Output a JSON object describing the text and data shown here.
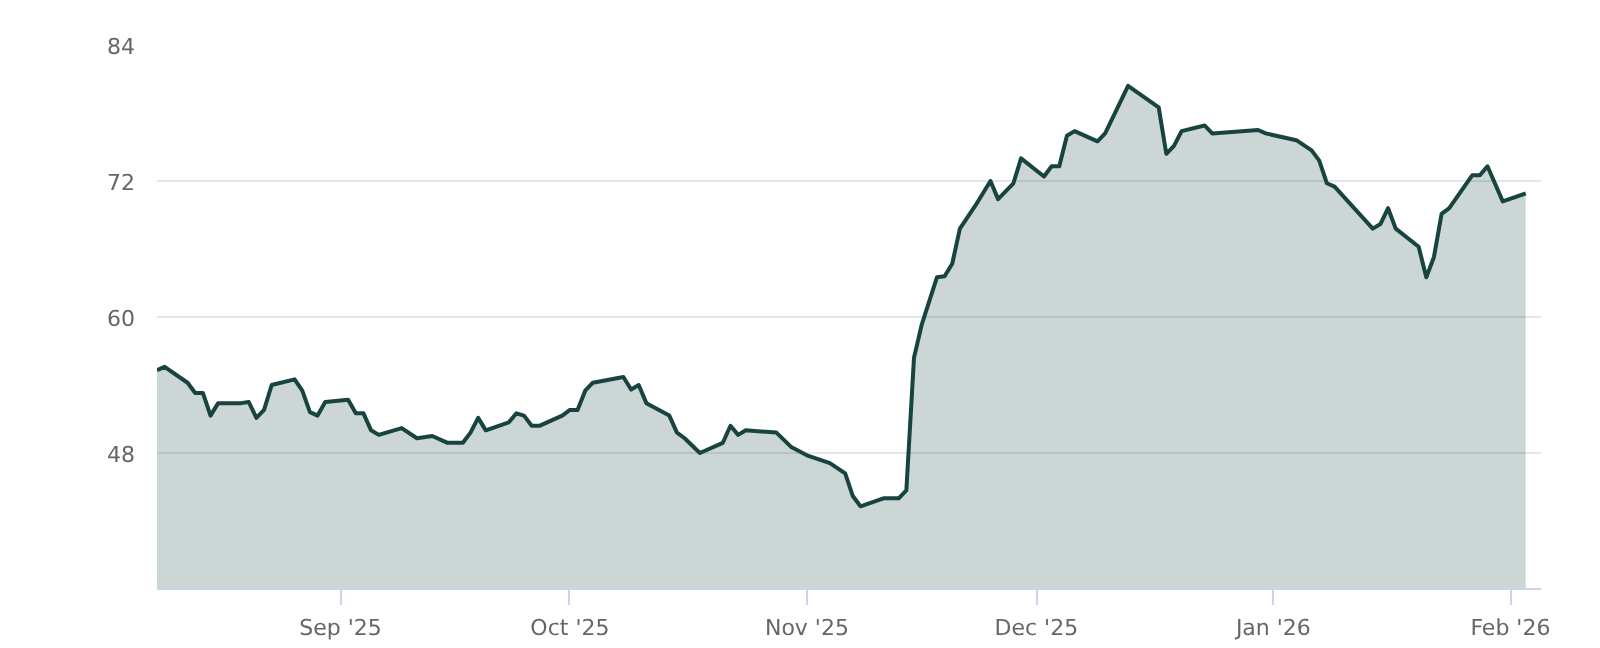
{
  "chart_data": {
    "type": "area",
    "grid": "y",
    "marker": "none",
    "line_style": "solid",
    "xlim": [
      "2025-08-08",
      "2026-02-05"
    ],
    "ylim": [
      36,
      84
    ],
    "xticks": [
      {
        "value": "2025-09-01",
        "label": "Sep '25"
      },
      {
        "value": "2025-10-01",
        "label": "Oct '25"
      },
      {
        "value": "2025-11-01",
        "label": "Nov '25"
      },
      {
        "value": "2025-12-01",
        "label": "Dec '25"
      },
      {
        "value": "2026-01-01",
        "label": "Jan '26"
      },
      {
        "value": "2026-02-01",
        "label": "Feb '26"
      }
    ],
    "yticks": [
      48,
      60,
      72,
      84
    ],
    "x": [
      "2025-08-08",
      "2025-08-09",
      "2025-08-12",
      "2025-08-13",
      "2025-08-14",
      "2025-08-15",
      "2025-08-16",
      "2025-08-19",
      "2025-08-20",
      "2025-08-21",
      "2025-08-22",
      "2025-08-23",
      "2025-08-26",
      "2025-08-27",
      "2025-08-28",
      "2025-08-29",
      "2025-08-30",
      "2025-09-02",
      "2025-09-03",
      "2025-09-04",
      "2025-09-05",
      "2025-09-06",
      "2025-09-09",
      "2025-09-11",
      "2025-09-13",
      "2025-09-15",
      "2025-09-17",
      "2025-09-18",
      "2025-09-19",
      "2025-09-20",
      "2025-09-23",
      "2025-09-24",
      "2025-09-25",
      "2025-09-26",
      "2025-09-27",
      "2025-09-30",
      "2025-10-01",
      "2025-10-02",
      "2025-10-03",
      "2025-10-04",
      "2025-10-08",
      "2025-10-09",
      "2025-10-10",
      "2025-10-11",
      "2025-10-14",
      "2025-10-15",
      "2025-10-16",
      "2025-10-18",
      "2025-10-21",
      "2025-10-22",
      "2025-10-23",
      "2025-10-24",
      "2025-10-28",
      "2025-10-30",
      "2025-11-01",
      "2025-11-04",
      "2025-11-06",
      "2025-11-07",
      "2025-11-08",
      "2025-11-11",
      "2025-11-13",
      "2025-11-14",
      "2025-11-15",
      "2025-11-16",
      "2025-11-18",
      "2025-11-19",
      "2025-11-20",
      "2025-11-21",
      "2025-11-23",
      "2025-11-25",
      "2025-11-26",
      "2025-11-28",
      "2025-11-29",
      "2025-12-02",
      "2025-12-03",
      "2025-12-04",
      "2025-12-05",
      "2025-12-06",
      "2025-12-09",
      "2025-12-10",
      "2025-12-13",
      "2025-12-17",
      "2025-12-18",
      "2025-12-19",
      "2025-12-20",
      "2025-12-23",
      "2025-12-24",
      "2025-12-30",
      "2025-12-31",
      "2026-01-04",
      "2026-01-06",
      "2026-01-07",
      "2026-01-08",
      "2026-01-09",
      "2026-01-14",
      "2026-01-15",
      "2026-01-16",
      "2026-01-17",
      "2026-01-20",
      "2026-01-21",
      "2026-01-22",
      "2026-01-23",
      "2026-01-24",
      "2026-01-27",
      "2026-01-28",
      "2026-01-29",
      "2026-01-31",
      "2026-02-03"
    ],
    "series": [
      {
        "color": "#17443f",
        "values": [
          55.3,
          55.6,
          54.2,
          53.3,
          53.3,
          51.3,
          52.4,
          52.4,
          52.5,
          51.1,
          51.8,
          54.0,
          54.5,
          53.5,
          51.6,
          51.3,
          52.5,
          52.7,
          51.5,
          51.5,
          50.0,
          49.6,
          50.2,
          49.3,
          49.5,
          48.9,
          48.9,
          49.8,
          51.1,
          50.0,
          50.7,
          51.5,
          51.3,
          50.4,
          50.4,
          51.3,
          51.8,
          51.8,
          53.5,
          54.2,
          54.7,
          53.6,
          54.0,
          52.4,
          51.3,
          49.8,
          49.3,
          48.0,
          48.9,
          50.4,
          49.6,
          50.0,
          49.8,
          48.5,
          47.8,
          47.1,
          46.2,
          44.2,
          43.3,
          44.0,
          44.0,
          44.7,
          56.4,
          59.3,
          63.5,
          63.6,
          64.7,
          67.8,
          69.8,
          72.0,
          70.4,
          71.8,
          74.0,
          72.4,
          73.3,
          73.3,
          76.0,
          76.4,
          75.5,
          76.2,
          80.4,
          78.5,
          74.4,
          75.1,
          76.4,
          76.9,
          76.2,
          76.5,
          76.2,
          75.6,
          74.7,
          73.8,
          71.8,
          71.5,
          67.8,
          68.2,
          69.6,
          67.8,
          66.2,
          63.5,
          65.3,
          69.1,
          69.6,
          72.5,
          72.5,
          73.3,
          70.2,
          70.9
        ]
      }
    ]
  }
}
